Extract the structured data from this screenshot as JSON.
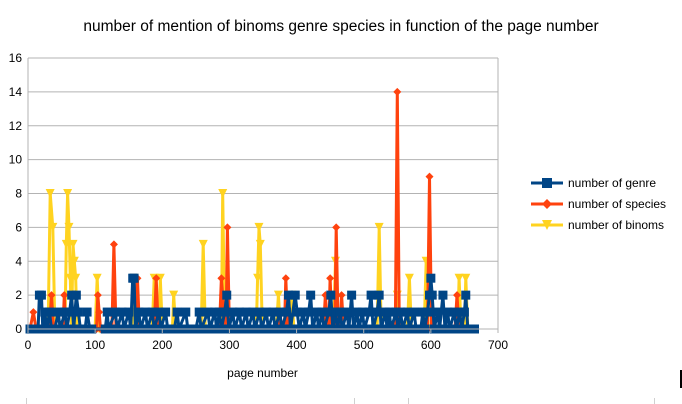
{
  "chart_data": {
    "type": "line",
    "title": "number of mention of binoms genre species in function of the page number",
    "xlabel": "page number",
    "ylabel": "",
    "xlim": [
      0,
      700
    ],
    "ylim": [
      0,
      16
    ],
    "x_ticks": [
      0,
      100,
      200,
      300,
      400,
      500,
      600,
      700
    ],
    "y_ticks": [
      0,
      2,
      4,
      6,
      8,
      10,
      12,
      14,
      16
    ],
    "grid": "horizontal",
    "legend_position": "right",
    "series": [
      {
        "name": "number of binoms",
        "color": "#ffd320",
        "marker": "triangle-down",
        "points": [
          [
            3,
            0
          ],
          [
            30,
            0
          ],
          [
            33,
            8
          ],
          [
            37,
            6
          ],
          [
            40,
            0
          ],
          [
            55,
            0
          ],
          [
            57,
            5
          ],
          [
            59,
            8
          ],
          [
            61,
            6
          ],
          [
            63,
            3
          ],
          [
            65,
            0
          ],
          [
            67,
            5
          ],
          [
            69,
            4
          ],
          [
            71,
            3
          ],
          [
            73,
            0
          ],
          [
            100,
            0
          ],
          [
            103,
            3
          ],
          [
            106,
            0
          ],
          [
            155,
            0
          ],
          [
            158,
            3
          ],
          [
            161,
            0
          ],
          [
            185,
            0
          ],
          [
            188,
            3
          ],
          [
            191,
            0
          ],
          [
            195,
            0
          ],
          [
            197,
            3
          ],
          [
            200,
            0
          ],
          [
            215,
            0
          ],
          [
            217,
            2
          ],
          [
            220,
            0
          ],
          [
            258,
            0
          ],
          [
            261,
            5
          ],
          [
            264,
            0
          ],
          [
            288,
            0
          ],
          [
            290,
            8
          ],
          [
            293,
            0
          ],
          [
            340,
            0
          ],
          [
            342,
            3
          ],
          [
            344,
            6
          ],
          [
            346,
            5
          ],
          [
            349,
            0
          ],
          [
            370,
            0
          ],
          [
            373,
            2
          ],
          [
            376,
            0
          ],
          [
            390,
            0
          ],
          [
            393,
            2
          ],
          [
            396,
            0
          ],
          [
            455,
            0
          ],
          [
            458,
            4
          ],
          [
            461,
            0
          ],
          [
            520,
            0
          ],
          [
            523,
            6
          ],
          [
            526,
            0
          ],
          [
            545,
            0
          ],
          [
            550,
            2
          ],
          [
            555,
            0
          ],
          [
            565,
            0
          ],
          [
            568,
            3
          ],
          [
            571,
            0
          ],
          [
            590,
            0
          ],
          [
            593,
            4
          ],
          [
            596,
            0
          ],
          [
            640,
            0
          ],
          [
            642,
            3
          ],
          [
            645,
            0
          ],
          [
            650,
            0
          ],
          [
            652,
            3
          ],
          [
            655,
            0
          ],
          [
            660,
            0
          ]
        ]
      },
      {
        "name": "number of species",
        "color": "#ff420e",
        "marker": "diamond",
        "points": [
          [
            3,
            0
          ],
          [
            8,
            1
          ],
          [
            12,
            0
          ],
          [
            32,
            0
          ],
          [
            35,
            2
          ],
          [
            38,
            0
          ],
          [
            52,
            0
          ],
          [
            54,
            2
          ],
          [
            56,
            0
          ],
          [
            102,
            0
          ],
          [
            104,
            2
          ],
          [
            106,
            1
          ],
          [
            108,
            0
          ],
          [
            125,
            0
          ],
          [
            128,
            5
          ],
          [
            131,
            0
          ],
          [
            160,
            0
          ],
          [
            163,
            3
          ],
          [
            166,
            0
          ],
          [
            188,
            0
          ],
          [
            191,
            3
          ],
          [
            194,
            0
          ],
          [
            285,
            0
          ],
          [
            288,
            3
          ],
          [
            290,
            2
          ],
          [
            292,
            0
          ],
          [
            295,
            0
          ],
          [
            297,
            6
          ],
          [
            300,
            0
          ],
          [
            372,
            0
          ],
          [
            375,
            1
          ],
          [
            378,
            0
          ],
          [
            382,
            0
          ],
          [
            384,
            3
          ],
          [
            387,
            0
          ],
          [
            440,
            0
          ],
          [
            443,
            2
          ],
          [
            446,
            0
          ],
          [
            448,
            0
          ],
          [
            450,
            3
          ],
          [
            453,
            0
          ],
          [
            457,
            0
          ],
          [
            459,
            6
          ],
          [
            462,
            0
          ],
          [
            465,
            0
          ],
          [
            467,
            2
          ],
          [
            470,
            0
          ],
          [
            547,
            0
          ],
          [
            550,
            14
          ],
          [
            553,
            0
          ],
          [
            595,
            0
          ],
          [
            598,
            9
          ],
          [
            601,
            0
          ],
          [
            636,
            0
          ],
          [
            639,
            2
          ],
          [
            642,
            0
          ]
        ]
      },
      {
        "name": "number of genre",
        "color": "#004586",
        "marker": "square",
        "points": [
          [
            3,
            0
          ],
          [
            15,
            0
          ],
          [
            17,
            2
          ],
          [
            20,
            2
          ],
          [
            22,
            0
          ],
          [
            25,
            1
          ],
          [
            28,
            0
          ],
          [
            32,
            1
          ],
          [
            35,
            0
          ],
          [
            40,
            0
          ],
          [
            45,
            1
          ],
          [
            48,
            0
          ],
          [
            55,
            1
          ],
          [
            58,
            0
          ],
          [
            62,
            1
          ],
          [
            65,
            2
          ],
          [
            68,
            0
          ],
          [
            72,
            2
          ],
          [
            75,
            1
          ],
          [
            78,
            0
          ],
          [
            85,
            0
          ],
          [
            88,
            1
          ],
          [
            92,
            0
          ],
          [
            95,
            0
          ],
          [
            115,
            0
          ],
          [
            118,
            1
          ],
          [
            120,
            0
          ],
          [
            130,
            1
          ],
          [
            133,
            0
          ],
          [
            140,
            1
          ],
          [
            143,
            0
          ],
          [
            150,
            1
          ],
          [
            153,
            0
          ],
          [
            156,
            3
          ],
          [
            158,
            3
          ],
          [
            160,
            0
          ],
          [
            165,
            1
          ],
          [
            168,
            0
          ],
          [
            175,
            1
          ],
          [
            178,
            0
          ],
          [
            185,
            1
          ],
          [
            188,
            0
          ],
          [
            195,
            1
          ],
          [
            198,
            0
          ],
          [
            205,
            1
          ],
          [
            208,
            0
          ],
          [
            218,
            0
          ],
          [
            222,
            1
          ],
          [
            225,
            0
          ],
          [
            235,
            1
          ],
          [
            238,
            0
          ],
          [
            250,
            0
          ],
          [
            255,
            1
          ],
          [
            258,
            0
          ],
          [
            268,
            1
          ],
          [
            271,
            0
          ],
          [
            278,
            1
          ],
          [
            281,
            0
          ],
          [
            285,
            1
          ],
          [
            288,
            0
          ],
          [
            293,
            1
          ],
          [
            296,
            2
          ],
          [
            299,
            0
          ],
          [
            305,
            1
          ],
          [
            308,
            0
          ],
          [
            315,
            1
          ],
          [
            318,
            0
          ],
          [
            325,
            1
          ],
          [
            328,
            0
          ],
          [
            335,
            1
          ],
          [
            338,
            0
          ],
          [
            345,
            1
          ],
          [
            348,
            0
          ],
          [
            355,
            1
          ],
          [
            358,
            0
          ],
          [
            365,
            1
          ],
          [
            368,
            0
          ],
          [
            375,
            1
          ],
          [
            378,
            0
          ],
          [
            385,
            1
          ],
          [
            388,
            2
          ],
          [
            391,
            0
          ],
          [
            398,
            2
          ],
          [
            401,
            1
          ],
          [
            404,
            0
          ],
          [
            410,
            1
          ],
          [
            413,
            0
          ],
          [
            418,
            1
          ],
          [
            421,
            2
          ],
          [
            424,
            0
          ],
          [
            430,
            1
          ],
          [
            433,
            0
          ],
          [
            438,
            1
          ],
          [
            441,
            0
          ],
          [
            448,
            1
          ],
          [
            451,
            2
          ],
          [
            454,
            0
          ],
          [
            458,
            1
          ],
          [
            461,
            0
          ],
          [
            465,
            1
          ],
          [
            468,
            0
          ],
          [
            475,
            1
          ],
          [
            478,
            0
          ],
          [
            482,
            2
          ],
          [
            485,
            0
          ],
          [
            490,
            1
          ],
          [
            493,
            0
          ],
          [
            498,
            1
          ],
          [
            501,
            0
          ],
          [
            508,
            1
          ],
          [
            511,
            2
          ],
          [
            514,
            0
          ],
          [
            520,
            1
          ],
          [
            523,
            2
          ],
          [
            526,
            0
          ],
          [
            532,
            1
          ],
          [
            535,
            0
          ],
          [
            538,
            1
          ],
          [
            541,
            0
          ],
          [
            548,
            1
          ],
          [
            551,
            0
          ],
          [
            555,
            1
          ],
          [
            558,
            0
          ],
          [
            565,
            1
          ],
          [
            568,
            0
          ],
          [
            575,
            1
          ],
          [
            578,
            0
          ],
          [
            585,
            0
          ],
          [
            588,
            1
          ],
          [
            591,
            0
          ],
          [
            595,
            1
          ],
          [
            598,
            2
          ],
          [
            600,
            3
          ],
          [
            602,
            2
          ],
          [
            605,
            0
          ],
          [
            610,
            1
          ],
          [
            613,
            0
          ],
          [
            618,
            2
          ],
          [
            621,
            0
          ],
          [
            625,
            1
          ],
          [
            628,
            0
          ],
          [
            635,
            1
          ],
          [
            638,
            0
          ],
          [
            643,
            1
          ],
          [
            646,
            0
          ],
          [
            650,
            1
          ],
          [
            652,
            2
          ],
          [
            655,
            0
          ],
          [
            665,
            0
          ]
        ]
      }
    ]
  }
}
